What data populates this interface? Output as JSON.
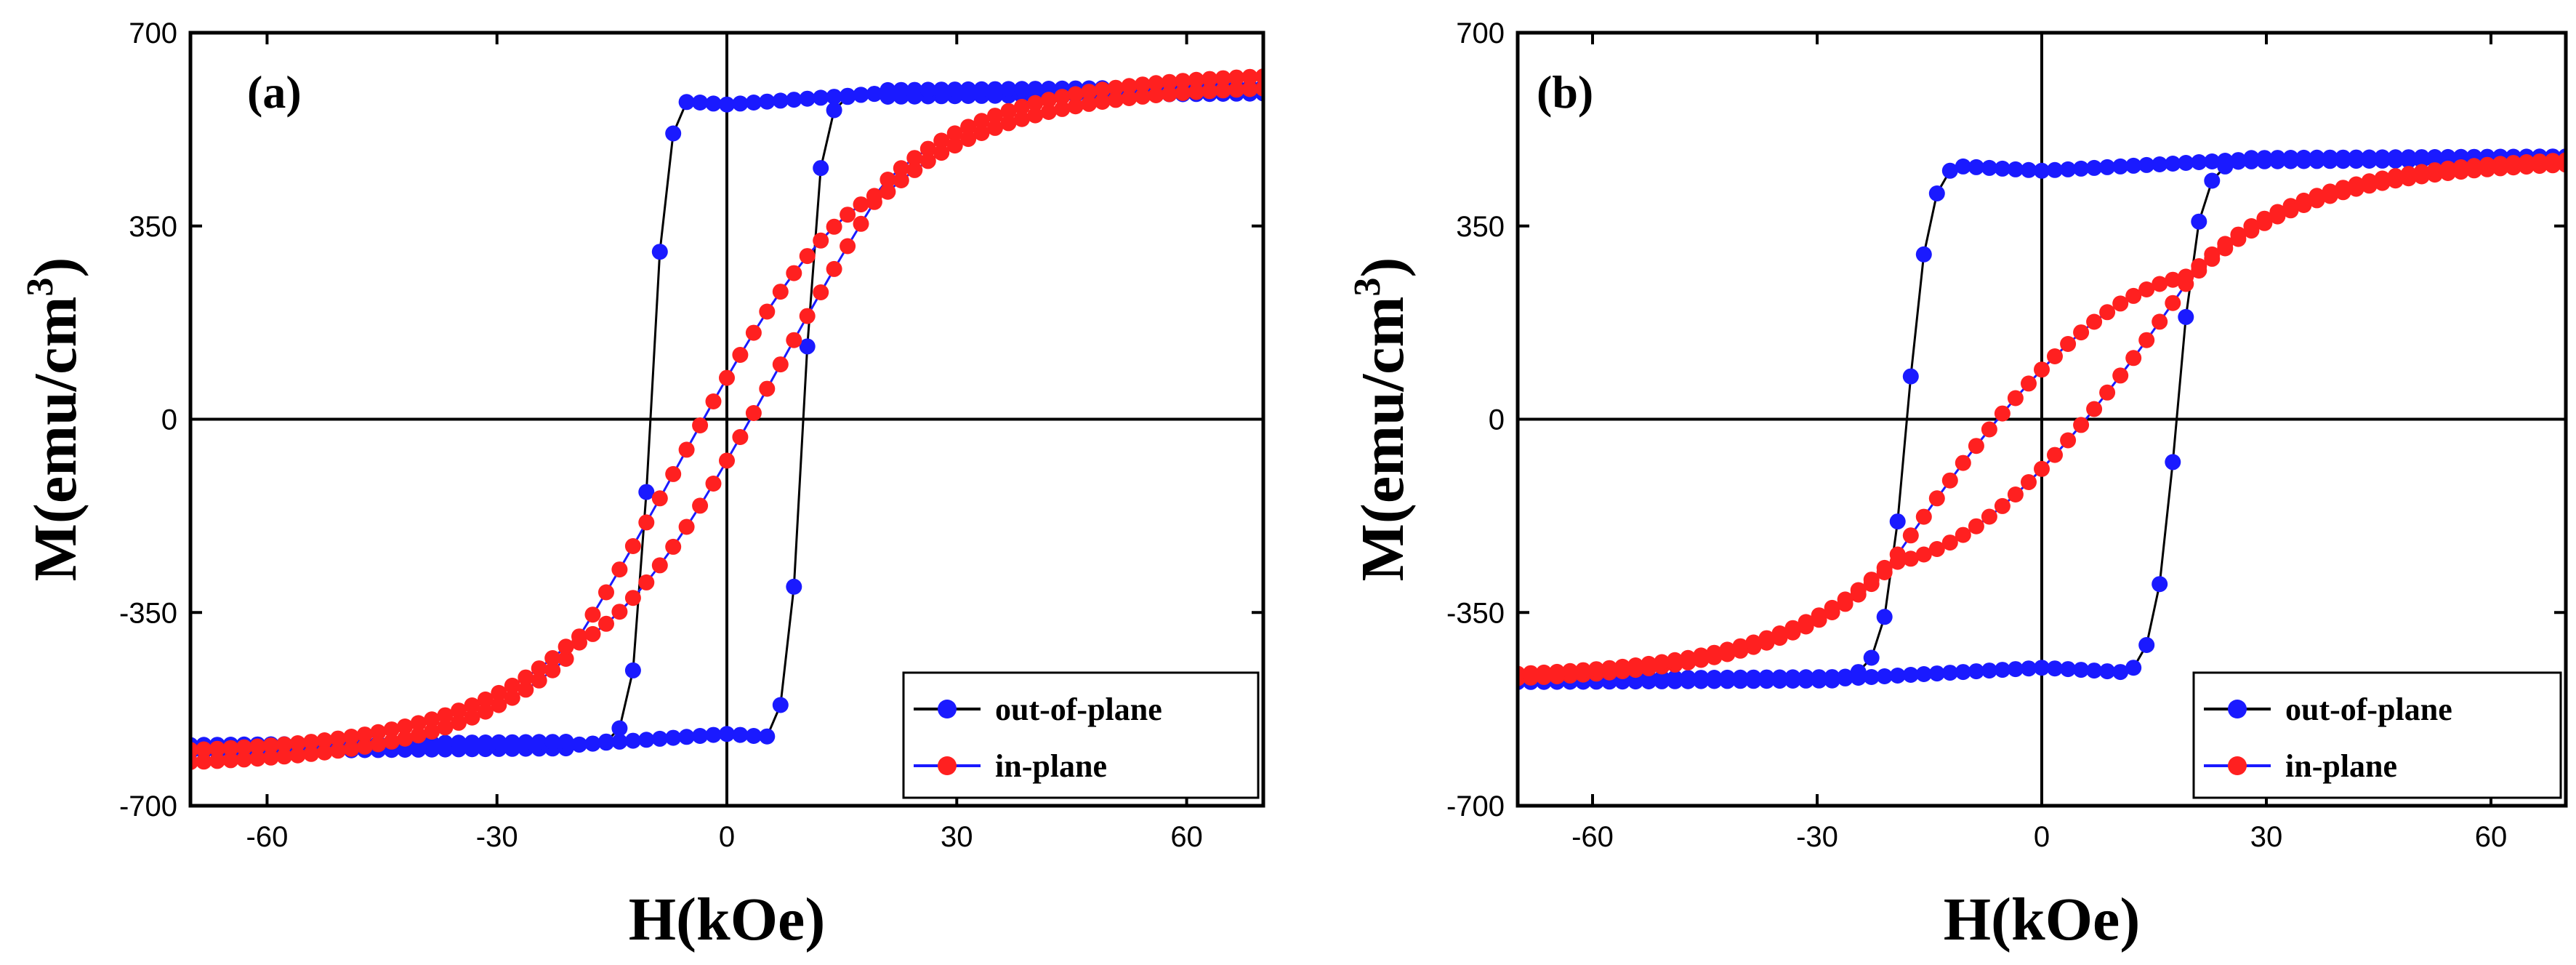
{
  "chart_data": [
    {
      "type": "scatter",
      "panel_label": "(a)",
      "xlabel": "H(kOe)",
      "ylabel_prefix": "M(emu/cm",
      "ylabel_sup": "3",
      "ylabel_suffix": ")",
      "xlim": [
        -70,
        70
      ],
      "ylim": [
        -700,
        700
      ],
      "xticks": [
        -60,
        -30,
        0,
        30,
        60
      ],
      "yticks": [
        -700,
        -350,
        0,
        350,
        700
      ],
      "legend_position": "bottom-right",
      "series": [
        {
          "name": "out-of-plane",
          "marker_color": "#1a1aff",
          "line_color": "#000000",
          "loop": {
            "h_max": 70,
            "coercivity": 10,
            "m_sat": 590,
            "m_rem": 570,
            "width": 2.2,
            "shape": "square",
            "close_field": 20,
            "tail_gap": 12,
            "n": 80
          }
        },
        {
          "name": "in-plane",
          "marker_color": "#ff2020",
          "line_color": "#1a1aff",
          "loop": {
            "h_max": 70,
            "sweep_max": 20,
            "m_sat": 610,
            "m_tip": 410,
            "m_rem": 75,
            "slope_scale": 27,
            "tail_gap": 22,
            "n": 80
          }
        }
      ]
    },
    {
      "type": "scatter",
      "panel_label": "(b)",
      "xlabel": "H(kOe)",
      "ylabel_prefix": "M(emu/cm",
      "ylabel_sup": "3",
      "ylabel_suffix": ")",
      "xlim": [
        -70,
        70
      ],
      "ylim": [
        -700,
        700
      ],
      "xticks": [
        -60,
        -30,
        0,
        30,
        60
      ],
      "yticks": [
        -700,
        -350,
        0,
        350,
        700
      ],
      "legend_position": "bottom-right",
      "series": [
        {
          "name": "out-of-plane",
          "marker_color": "#1a1aff",
          "line_color": "#000000",
          "loop": {
            "h_max": 70,
            "coercivity": 18,
            "m_sat": 470,
            "m_rem": 450,
            "width": 3.0,
            "shape": "square",
            "close_field": 27,
            "tail_gap": 6,
            "n": 80
          }
        },
        {
          "name": "in-plane",
          "marker_color": "#ff2020",
          "line_color": "#1a1aff",
          "loop": {
            "h_max": 70,
            "sweep_max": 20,
            "m_sat": 465,
            "m_tip": 260,
            "m_rem": 90,
            "slope_scale": 40,
            "tail_gap": 8,
            "n": 80
          }
        }
      ]
    }
  ]
}
